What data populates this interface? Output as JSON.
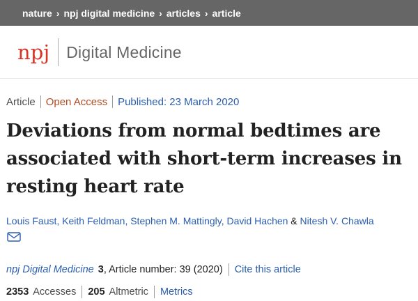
{
  "breadcrumb": {
    "items": [
      "nature",
      "npj digital medicine",
      "articles",
      "article"
    ],
    "separator": "›"
  },
  "header": {
    "logo_n": "n",
    "logo_pj": "pj",
    "journal_name": "Digital Medicine"
  },
  "article_meta": {
    "type": "Article",
    "access": "Open Access",
    "published": "Published: 23 March 2020"
  },
  "article": {
    "title": "Deviations from normal bedtimes are associated with short-term increases in resting heart rate",
    "authors": [
      "Louis Faust",
      "Keith Feldman",
      "Stephen M. Mattingly",
      "David Hachen",
      "Nitesh V. Chawla"
    ],
    "author_sep": ", ",
    "author_amp": " & ",
    "mail_icon": "envelope-icon"
  },
  "citation": {
    "journal": "npj Digital Medicine",
    "volume": "3",
    "details": ", Article number: 39 (2020)",
    "cite_link": "Cite this article"
  },
  "metrics": {
    "accesses_count": "2353",
    "accesses_label": "Accesses",
    "altmetric_count": "205",
    "altmetric_label": "Altmetric",
    "metrics_link": "Metrics"
  },
  "colors": {
    "topbar": "#666666",
    "link": "#2a5db0",
    "open_access": "#b34c22",
    "logo_red": "#d8342a"
  }
}
